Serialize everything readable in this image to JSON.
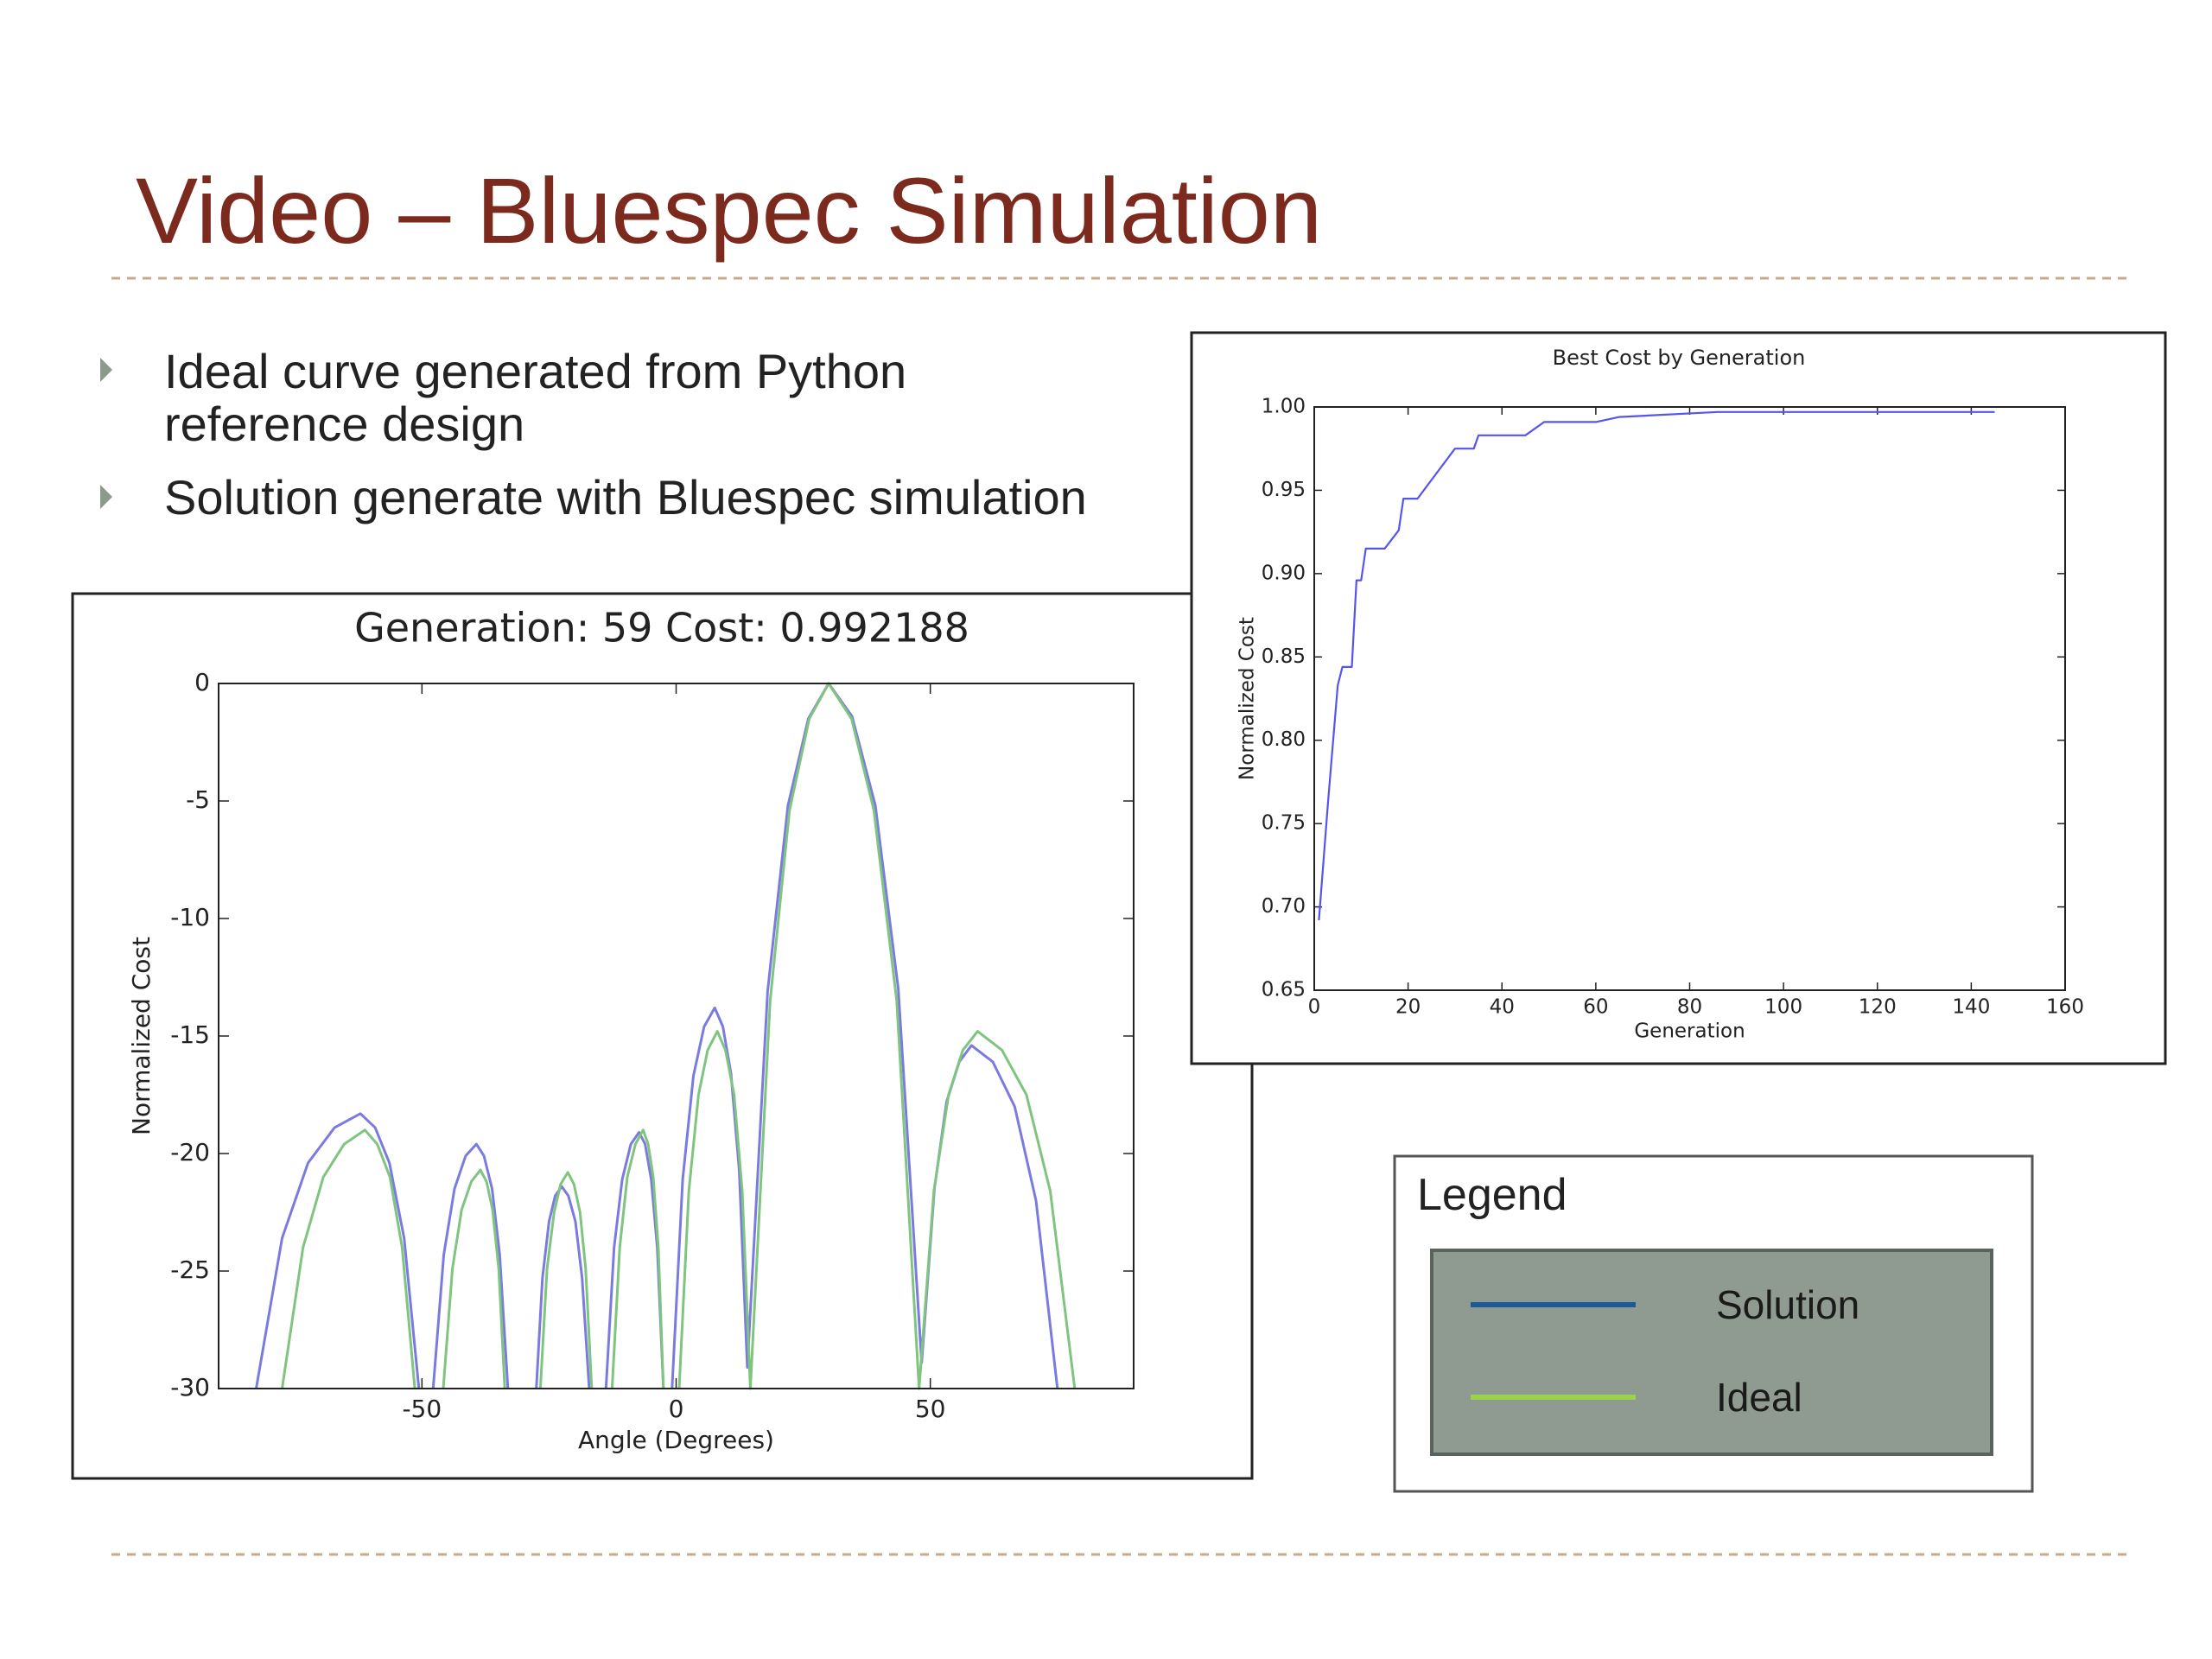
{
  "title": "Video – Bluespec Simulation",
  "bullets": [
    "Ideal curve generated from Python",
    "reference design",
    "Solution generate with Bluespec simulation"
  ],
  "chart_data": [
    {
      "type": "line",
      "title": "Generation: 59 Cost: 0.992188",
      "x_label": "Angle (Degrees)",
      "y_label": "Normalized Cost",
      "xlim": [
        -90,
        90
      ],
      "xticks": [
        -50,
        0,
        50
      ],
      "ylim": [
        -30,
        0
      ],
      "yticks": [
        0,
        -5,
        -10,
        -15,
        -20,
        -25,
        -30
      ],
      "legend": {
        "title": "Legend",
        "colors": [
          "#1c5a9c",
          "#9bd14b"
        ]
      },
      "series": [
        {
          "name": "Solution",
          "color": "#7b7bdf",
          "x": [
            -82.6,
            -77.5,
            -72.4,
            -67.2,
            -62.1,
            -59.2,
            -56.4,
            -53.5,
            -50.6,
            null,
            -47.8,
            -45.7,
            -43.6,
            -41.4,
            -39.3,
            -37.8,
            -36.2,
            -34.7,
            -33.1,
            null,
            -27.5,
            -26.3,
            -25.0,
            -23.8,
            -22.5,
            -21.2,
            -19.8,
            -18.5,
            -17.1,
            null,
            -13.8,
            -12.2,
            -10.6,
            -8.9,
            -7.3,
            -6.1,
            -4.9,
            -3.7,
            -2.5,
            null,
            -0.8,
            1.3,
            3.4,
            5.5,
            7.6,
            9.2,
            10.8,
            12.4,
            14.0,
            18.0,
            22.0,
            26.0,
            30.0,
            34.6,
            39.2,
            43.7,
            48.3,
            50.8,
            53.2,
            55.7,
            58.1,
            62.3,
            66.6,
            70.8,
            75.0
          ],
          "values": [
            -30,
            -23.6,
            -20.4,
            -18.9,
            -18.3,
            -18.9,
            -20.4,
            -23.6,
            -30,
            null,
            -30,
            -24.3,
            -21.5,
            -20.1,
            -19.6,
            -20.1,
            -21.5,
            -24.3,
            -30,
            null,
            -30,
            -25.3,
            -22.9,
            -21.8,
            -21.4,
            -21.8,
            -22.9,
            -25.3,
            -30,
            null,
            -30,
            -24.0,
            -21.1,
            -19.6,
            -19.1,
            -19.6,
            -21.1,
            -24.0,
            -30,
            null,
            -30,
            -21.1,
            -16.7,
            -14.6,
            -13.8,
            -14.6,
            -16.6,
            -20.7,
            -29.1,
            -13.1,
            -5.2,
            -1.5,
            0,
            -1.4,
            -5.2,
            -13.0,
            -28.9,
            -21.5,
            -17.8,
            -16.1,
            -15.4,
            -16.1,
            -18.0,
            -22.0,
            -30
          ]
        },
        {
          "name": "Ideal",
          "color": "#7fc47f",
          "x": [
            -77.5,
            -73.4,
            -69.4,
            -65.3,
            -61.2,
            -58.8,
            -56.3,
            -53.9,
            -51.4,
            null,
            -45.8,
            -44.0,
            -42.2,
            -40.3,
            -38.5,
            -37.3,
            -36.1,
            -34.9,
            -33.7,
            null,
            -26.7,
            -25.4,
            -24.0,
            -22.7,
            -21.3,
            -20.1,
            -18.9,
            -17.8,
            -16.6,
            null,
            -12.6,
            -11.1,
            -9.6,
            -8.0,
            -6.5,
            -5.5,
            -4.5,
            -3.5,
            -2.5,
            null,
            0.6,
            2.5,
            4.4,
            6.2,
            8.1,
            9.7,
            11.4,
            13.0,
            14.6,
            18.5,
            22.3,
            26.2,
            30.0,
            34.5,
            38.9,
            43.4,
            47.8,
            50.7,
            53.6,
            56.4,
            59.3,
            64.1,
            68.9,
            73.6,
            78.4
          ],
          "values": [
            -30,
            -24.0,
            -21.0,
            -19.6,
            -19.0,
            -19.6,
            -21.0,
            -24.0,
            -30,
            null,
            -30,
            -24.9,
            -22.4,
            -21.2,
            -20.7,
            -21.2,
            -22.4,
            -24.9,
            -30,
            null,
            -30,
            -24.9,
            -22.5,
            -21.3,
            -20.8,
            -21.3,
            -22.5,
            -24.9,
            -30,
            null,
            -30,
            -24.0,
            -21.0,
            -19.6,
            -19.0,
            -19.6,
            -21.0,
            -24.0,
            -30,
            null,
            -30,
            -21.6,
            -17.5,
            -15.6,
            -14.8,
            -15.6,
            -17.5,
            -21.6,
            -30,
            -13.5,
            -5.4,
            -1.5,
            0,
            -1.5,
            -5.4,
            -13.5,
            -30,
            -21.6,
            -17.5,
            -15.6,
            -14.8,
            -15.6,
            -17.5,
            -21.6,
            -30
          ]
        }
      ]
    },
    {
      "type": "line",
      "title": "Best Cost by Generation",
      "x_label": "Generation",
      "y_label": "Normalized Cost",
      "xlim": [
        0,
        160
      ],
      "xticks": [
        0,
        20,
        40,
        60,
        80,
        100,
        120,
        140,
        160
      ],
      "ylim": [
        0.65,
        1.0
      ],
      "yticks": [
        0.65,
        {
          "value": 0.7,
          "label": "0.70"
        },
        0.75,
        {
          "value": 0.8,
          "label": "0.80"
        },
        0.85,
        {
          "value": 0.9,
          "label": "0.90"
        },
        0.95,
        {
          "value": 1.0,
          "label": "1.00"
        }
      ],
      "series": [
        {
          "color": "#5555ee",
          "x": [
            1,
            3,
            5,
            6,
            8,
            9,
            10,
            11,
            15,
            18,
            19,
            22,
            30,
            34,
            35,
            45,
            49,
            60,
            65,
            86,
            145
          ],
          "values": [
            0.692,
            0.765,
            0.833,
            0.844,
            0.844,
            0.896,
            0.896,
            0.915,
            0.915,
            0.926,
            0.945,
            0.945,
            0.975,
            0.975,
            0.983,
            0.983,
            0.991,
            0.991,
            0.994,
            0.997,
            0.997
          ]
        }
      ]
    }
  ]
}
